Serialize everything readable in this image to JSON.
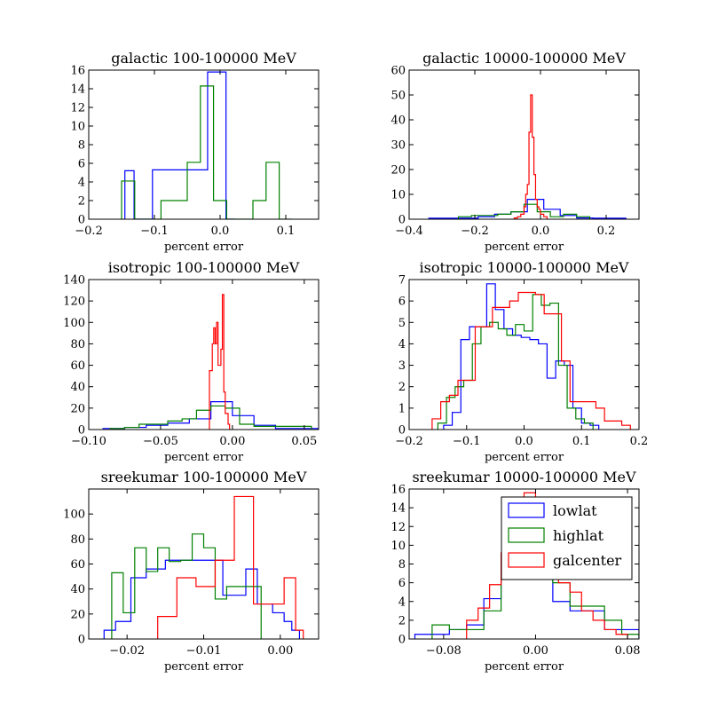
{
  "figure": {
    "background": "#ffffff"
  },
  "legend": {
    "placement": "upper-right",
    "panel": 5,
    "entries": [
      {
        "name": "lowlat",
        "color": "#0000ff"
      },
      {
        "name": "highlat",
        "color": "#008000"
      },
      {
        "name": "galcenter",
        "color": "#ff0000"
      }
    ]
  },
  "chart_data": [
    {
      "type": "histogram",
      "title": "galactic 100-100000 MeV",
      "xlabel": "percent error",
      "xlim": [
        -0.2,
        0.15
      ],
      "ylim": [
        0,
        16
      ],
      "xticks": [
        -0.2,
        -0.1,
        0.0,
        0.1
      ],
      "xtick_labels": [
        "−0.2",
        "−0.1",
        "0.0",
        "0.1"
      ],
      "yticks": [
        0,
        2,
        4,
        6,
        8,
        10,
        12,
        14,
        16
      ],
      "ytick_labels": [
        "0",
        "2",
        "4",
        "6",
        "8",
        "10",
        "12",
        "14",
        "16"
      ],
      "series": [
        {
          "name": "lowlat",
          "color": "#0000ff",
          "edges": [
            -0.145,
            -0.131,
            -0.117,
            -0.103,
            -0.089,
            -0.075,
            -0.061,
            -0.047,
            -0.033,
            -0.019,
            -0.005,
            0.009,
            0.023
          ],
          "values": [
            5.2,
            0,
            0,
            5.3,
            5.3,
            5.3,
            5.3,
            5.3,
            5.3,
            15.8,
            15.8,
            0
          ]
        },
        {
          "name": "highlat",
          "color": "#008000",
          "edges": [
            -0.15,
            -0.13,
            -0.11,
            -0.09,
            -0.07,
            -0.05,
            -0.03,
            -0.01,
            0.01,
            0.03,
            0.05,
            0.07,
            0.09,
            0.11
          ],
          "values": [
            4.1,
            0,
            0,
            2.0,
            2.0,
            6.1,
            14.3,
            2.0,
            0,
            0,
            2.0,
            6.1,
            0
          ]
        }
      ]
    },
    {
      "type": "histogram",
      "title": "galactic 10000-100000 MeV",
      "xlabel": "percent error",
      "xlim": [
        -0.4,
        0.3
      ],
      "ylim": [
        0,
        60
      ],
      "xticks": [
        -0.4,
        -0.2,
        0.0,
        0.2
      ],
      "xtick_labels": [
        "−0.4",
        "−0.2",
        "0.0",
        "0.2"
      ],
      "yticks": [
        0,
        10,
        20,
        30,
        40,
        50,
        60
      ],
      "ytick_labels": [
        "0",
        "10",
        "20",
        "30",
        "40",
        "50",
        "60"
      ],
      "series": [
        {
          "name": "lowlat",
          "color": "#0000ff",
          "edges": [
            -0.34,
            -0.29,
            -0.24,
            -0.19,
            -0.14,
            -0.09,
            -0.04,
            0.01,
            0.06,
            0.11,
            0.16,
            0.21,
            0.26
          ],
          "values": [
            0.4,
            0.4,
            0.4,
            1.0,
            2.0,
            3.0,
            8.0,
            4.0,
            1.5,
            0.5,
            0.4,
            0.4
          ]
        },
        {
          "name": "highlat",
          "color": "#008000",
          "edges": [
            -0.25,
            -0.21,
            -0.17,
            -0.13,
            -0.09,
            -0.05,
            -0.01,
            0.03,
            0.07,
            0.11,
            0.15
          ],
          "values": [
            1.0,
            1.5,
            1.5,
            2.0,
            3.0,
            6.0,
            3.0,
            1.0,
            2.0,
            1.0
          ]
        },
        {
          "name": "galcenter",
          "color": "#ff0000",
          "edges": [
            -0.08,
            -0.07,
            -0.06,
            -0.05,
            -0.045,
            -0.04,
            -0.035,
            -0.03,
            -0.025,
            -0.02,
            -0.015,
            -0.01,
            -0.005,
            0.0,
            0.01,
            0.02
          ],
          "values": [
            0.5,
            1.0,
            2.0,
            5.0,
            10.0,
            14.0,
            35.0,
            50.0,
            33.0,
            18.0,
            8.0,
            5.0,
            4.0,
            2.0,
            1.0
          ]
        }
      ]
    },
    {
      "type": "histogram",
      "title": "isotropic 100-100000 MeV",
      "xlabel": "percent error",
      "xlim": [
        -0.1,
        0.06
      ],
      "ylim": [
        0,
        140
      ],
      "xticks": [
        -0.1,
        -0.05,
        0.0,
        0.05
      ],
      "xtick_labels": [
        "−0.10",
        "−0.05",
        "0.00",
        "0.05"
      ],
      "yticks": [
        0,
        20,
        40,
        60,
        80,
        100,
        120,
        140
      ],
      "ytick_labels": [
        "0",
        "20",
        "40",
        "60",
        "80",
        "100",
        "120",
        "140"
      ],
      "series": [
        {
          "name": "lowlat",
          "color": "#0000ff",
          "edges": [
            -0.09,
            -0.075,
            -0.06,
            -0.045,
            -0.03,
            -0.015,
            0.0,
            0.015,
            0.03,
            0.045,
            0.06
          ],
          "values": [
            1.0,
            2.0,
            4.0,
            6.0,
            10.0,
            26.0,
            13.0,
            4.0,
            1.0,
            1.0
          ]
        },
        {
          "name": "highlat",
          "color": "#008000",
          "edges": [
            -0.085,
            -0.075,
            -0.065,
            -0.055,
            -0.045,
            -0.035,
            -0.025,
            -0.015,
            -0.005,
            0.005,
            0.015,
            0.025,
            0.035,
            0.045,
            0.055
          ],
          "values": [
            1.0,
            2.0,
            5.0,
            5.0,
            8.0,
            10.0,
            18.0,
            22.0,
            20.0,
            5.0,
            3.0,
            3.0,
            3.0,
            3.0
          ]
        },
        {
          "name": "galcenter",
          "color": "#ff0000",
          "edges": [
            -0.016,
            -0.014,
            -0.013,
            -0.012,
            -0.011,
            -0.01,
            -0.009,
            -0.008,
            -0.007,
            -0.006,
            -0.005,
            -0.004,
            -0.003,
            -0.002
          ],
          "values": [
            55.0,
            80.0,
            95.0,
            80.0,
            100.0,
            60.0,
            60.0,
            75.0,
            126.0,
            35.0,
            15.0,
            15.0,
            5.0
          ]
        }
      ]
    },
    {
      "type": "histogram",
      "title": "isotropic 10000-100000 MeV",
      "xlabel": "percent error",
      "xlim": [
        -0.2,
        0.2
      ],
      "ylim": [
        0,
        7
      ],
      "xticks": [
        -0.2,
        -0.1,
        0.0,
        0.1,
        0.2
      ],
      "xtick_labels": [
        "−0.2",
        "−0.1",
        "0.0",
        "0.1",
        "0.2"
      ],
      "yticks": [
        0,
        1,
        2,
        3,
        4,
        5,
        6,
        7
      ],
      "ytick_labels": [
        "0",
        "1",
        "2",
        "3",
        "4",
        "5",
        "6",
        "7"
      ],
      "series": [
        {
          "name": "lowlat",
          "color": "#0000ff",
          "edges": [
            -0.14,
            -0.125,
            -0.11,
            -0.095,
            -0.08,
            -0.065,
            -0.05,
            -0.035,
            -0.02,
            -0.005,
            0.01,
            0.025,
            0.04,
            0.055,
            0.07,
            0.085,
            0.1,
            0.115,
            0.13
          ],
          "values": [
            0.2,
            0.8,
            4.2,
            4.8,
            4.8,
            6.8,
            5.6,
            4.7,
            4.4,
            4.3,
            4.2,
            4.0,
            2.4,
            3.2,
            3.0,
            1.0,
            0.3,
            0.2
          ]
        },
        {
          "name": "highlat",
          "color": "#008000",
          "edges": [
            -0.15,
            -0.135,
            -0.12,
            -0.105,
            -0.09,
            -0.075,
            -0.06,
            -0.045,
            -0.03,
            -0.015,
            0.0,
            0.015,
            0.03,
            0.045,
            0.06,
            0.075,
            0.09,
            0.105,
            0.12
          ],
          "values": [
            0.3,
            1.5,
            2.0,
            2.3,
            4.0,
            4.8,
            5.0,
            4.7,
            4.4,
            4.9,
            4.6,
            6.3,
            5.8,
            5.9,
            3.0,
            1.0,
            0.5,
            0.3
          ]
        },
        {
          "name": "galcenter",
          "color": "#ff0000",
          "edges": [
            -0.16,
            -0.145,
            -0.13,
            -0.115,
            -0.1,
            -0.085,
            -0.07,
            -0.055,
            -0.04,
            -0.025,
            -0.01,
            0.005,
            0.02,
            0.035,
            0.05,
            0.065,
            0.08,
            0.095,
            0.11,
            0.125,
            0.14,
            0.155,
            0.17,
            0.185
          ],
          "values": [
            0.5,
            1.3,
            1.6,
            2.3,
            2.3,
            4.8,
            4.8,
            5.7,
            5.7,
            6.0,
            6.4,
            6.4,
            6.3,
            5.4,
            5.4,
            3.2,
            1.3,
            1.3,
            1.3,
            1.0,
            0.4,
            0.4,
            0.2
          ]
        }
      ]
    },
    {
      "type": "histogram",
      "title": "sreekumar 100-100000 MeV",
      "xlabel": "percent error",
      "xlim": [
        -0.025,
        0.005
      ],
      "ylim": [
        0,
        120
      ],
      "xticks": [
        -0.02,
        -0.01,
        0.0
      ],
      "xtick_labels": [
        "−0.02",
        "−0.01",
        "0.00"
      ],
      "yticks": [
        0,
        20,
        40,
        60,
        80,
        100
      ],
      "ytick_labels": [
        "0",
        "20",
        "40",
        "60",
        "80",
        "100"
      ],
      "series": [
        {
          "name": "lowlat",
          "color": "#0000ff",
          "edges": [
            -0.023,
            -0.0215,
            -0.0195,
            -0.0175,
            -0.015,
            -0.013,
            -0.011,
            -0.009,
            -0.0075,
            -0.006,
            -0.0045,
            -0.003,
            -0.001,
            0.0005,
            0.0015,
            0.0025
          ],
          "values": [
            7.0,
            14.0,
            49.0,
            56.0,
            63.0,
            63.0,
            63.0,
            63.0,
            35.0,
            35.0,
            56.0,
            28.0,
            21.0,
            14.0,
            7.0
          ]
        },
        {
          "name": "highlat",
          "color": "#008000",
          "edges": [
            -0.022,
            -0.0205,
            -0.019,
            -0.0175,
            -0.016,
            -0.0145,
            -0.013,
            -0.0115,
            -0.01,
            -0.0085,
            -0.007,
            -0.0055,
            -0.004,
            -0.0025
          ],
          "values": [
            53.0,
            21.0,
            73.0,
            54.0,
            73.0,
            62.0,
            63.0,
            84.0,
            73.0,
            32.0,
            42.0,
            42.0,
            42.0
          ]
        },
        {
          "name": "galcenter",
          "color": "#ff0000",
          "edges": [
            -0.016,
            -0.0135,
            -0.011,
            -0.0085,
            -0.006,
            -0.0035,
            -0.001,
            0.0005,
            0.002,
            0.0025,
            0.003
          ],
          "values": [
            18.0,
            49.0,
            42.0,
            63.0,
            114.0,
            28.0,
            28.0,
            49.0,
            7.0,
            7.0
          ]
        }
      ]
    },
    {
      "type": "histogram",
      "title": "sreekumar 10000-100000 MeV",
      "xlabel": "percent error",
      "xlim": [
        -0.11,
        0.09
      ],
      "ylim": [
        0,
        16
      ],
      "xticks": [
        -0.08,
        0.0,
        0.08
      ],
      "xtick_labels": [
        "−0.08",
        "0.00",
        "0.08"
      ],
      "yticks": [
        0,
        2,
        4,
        6,
        8,
        10,
        12,
        14,
        16
      ],
      "ytick_labels": [
        "0",
        "2",
        "4",
        "6",
        "8",
        "10",
        "12",
        "14",
        "16"
      ],
      "series": [
        {
          "name": "lowlat",
          "color": "#0000ff",
          "edges": [
            -0.105,
            -0.09,
            -0.075,
            -0.06,
            -0.045,
            -0.03,
            -0.015,
            0.0,
            0.015,
            0.03,
            0.045,
            0.06,
            0.075,
            0.09
          ],
          "values": [
            0.5,
            0.5,
            1.0,
            1.5,
            4.3,
            8.5,
            14.0,
            13.0,
            4.0,
            3.0,
            3.0,
            1.0,
            1.0
          ]
        },
        {
          "name": "highlat",
          "color": "#008000",
          "edges": [
            -0.09,
            -0.075,
            -0.06,
            -0.045,
            -0.03,
            -0.015,
            0.0,
            0.015,
            0.03,
            0.045,
            0.06,
            0.075,
            0.09
          ],
          "values": [
            1.5,
            1.0,
            1.0,
            3.0,
            8.0,
            15.0,
            12.0,
            6.0,
            3.5,
            3.5,
            2.0,
            0.5
          ]
        },
        {
          "name": "galcenter",
          "color": "#ff0000",
          "edges": [
            -0.06,
            -0.05,
            -0.04,
            -0.03,
            -0.02,
            -0.01,
            0.0,
            0.01,
            0.02,
            0.03,
            0.04,
            0.05,
            0.06,
            0.07,
            0.08
          ],
          "values": [
            2.0,
            3.3,
            5.8,
            9.2,
            12.0,
            15.6,
            10.0,
            8.0,
            6.0,
            5.0,
            3.0,
            2.0,
            1.0,
            0.5
          ]
        }
      ]
    }
  ]
}
